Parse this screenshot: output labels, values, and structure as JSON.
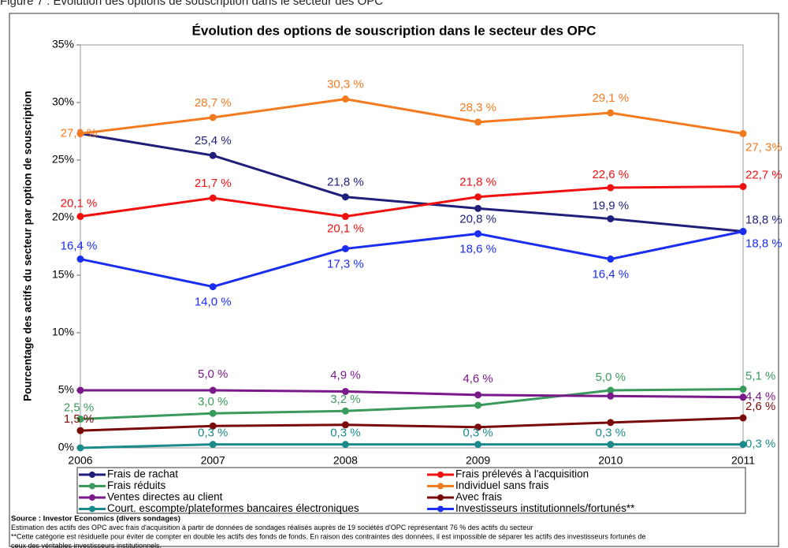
{
  "chart_data": {
    "type": "line",
    "figure_caption": "Figure 7 : Évolution des options de souscription dans le secteur des OPC",
    "title": "Évolution des options de souscription dans le secteur des OPC",
    "y_label": "Pourcentage des actifs du secteur par option de souscription",
    "categories": [
      "2006",
      "2007",
      "2008",
      "2009",
      "2010",
      "2011"
    ],
    "ylim": [
      0,
      35
    ],
    "yticks": [
      {
        "value": 0,
        "label": "0%"
      },
      {
        "value": 5,
        "label": "5%"
      },
      {
        "value": 10,
        "label": "10%"
      },
      {
        "value": 15,
        "label": "15%"
      },
      {
        "value": 20,
        "label": "20%"
      },
      {
        "value": 25,
        "label": "25%"
      },
      {
        "value": 30,
        "label": "30%"
      },
      {
        "value": 35,
        "label": "35%"
      }
    ],
    "grid": false,
    "series": [
      {
        "name": "Frais de rachat",
        "color": "#1f1f7a",
        "values": [
          27.3,
          25.4,
          21.8,
          20.8,
          19.9,
          18.8
        ],
        "value_labels": [
          null,
          "25,4 %",
          "21,8 %",
          "20,8 %",
          "19,9 %",
          "18,8 %"
        ]
      },
      {
        "name": "Frais prélevés à l'acquisition",
        "color": "#f01010",
        "values": [
          20.1,
          21.7,
          20.1,
          21.8,
          22.6,
          22.7
        ],
        "value_labels": [
          "20,1 %",
          "21,7 %",
          "20,1 %",
          "21,8 %",
          "22,6 %",
          "22,7 %"
        ]
      },
      {
        "name": "Frais réduits",
        "color": "#3a9a5c",
        "values": [
          2.5,
          3.0,
          3.2,
          3.7,
          5.0,
          5.1
        ],
        "value_labels": [
          "2,5 %",
          "3,0 %",
          "3,2 %",
          null,
          "5,0 %",
          "5,1 %"
        ]
      },
      {
        "name": "Individuel sans frais",
        "color": "#f47a20",
        "values": [
          27.3,
          28.7,
          30.3,
          28.3,
          29.1,
          27.3
        ],
        "value_labels": [
          "27,3 %",
          "28,7 %",
          "30,3 %",
          "28,3 %",
          "29,1 %",
          "27, 3%"
        ]
      },
      {
        "name": "Ventes directes au client",
        "color": "#7a1a8a",
        "values": [
          5.0,
          5.0,
          4.9,
          4.6,
          4.5,
          4.4
        ],
        "value_labels": [
          null,
          "5,0 %",
          "4,9 %",
          "4,6 %",
          null,
          "4,4 %"
        ]
      },
      {
        "name": "Avec frais",
        "color": "#7a0a0a",
        "values": [
          1.5,
          1.9,
          2.0,
          1.8,
          2.2,
          2.6
        ],
        "value_labels": [
          "1,5 %",
          null,
          null,
          null,
          null,
          "2,6 %"
        ]
      },
      {
        "name": "Court. escompte/plateformes bancaires électroniques",
        "color": "#1a8a8a",
        "values": [
          0,
          0.3,
          0.3,
          0.3,
          0.3,
          0.3
        ],
        "value_labels": [
          null,
          "0,3 %",
          "0,3 %",
          "0,3 %",
          "0,3 %",
          "0,3 %"
        ]
      },
      {
        "name": "Investisseurs institutionnels/fortunés**",
        "color": "#1a2ef0",
        "values": [
          16.4,
          14.0,
          17.3,
          18.6,
          16.4,
          18.8
        ],
        "value_labels": [
          "16,4 %",
          "14,0 %",
          "17,3 %",
          "18,6 %",
          "16,4 %",
          "18,8 %"
        ]
      }
    ],
    "notes": [
      "Source : Investor Economics (divers sondages)",
      "Estimation des actifs des OPC avec frais d'acquisition à partir de données de sondages réalisés auprès de 19 sociétés d'OPC représentant 76 % des actifs du secteur",
      "**Cette catégorie est résiduelle pour éviter de compter en double les actifs des fonds de fonds. En raison des contraintes des données, il est impossible de séparer les actifs des investisseurs fortunés de",
      "ceux des véritables investisseurs institutionnels."
    ]
  }
}
